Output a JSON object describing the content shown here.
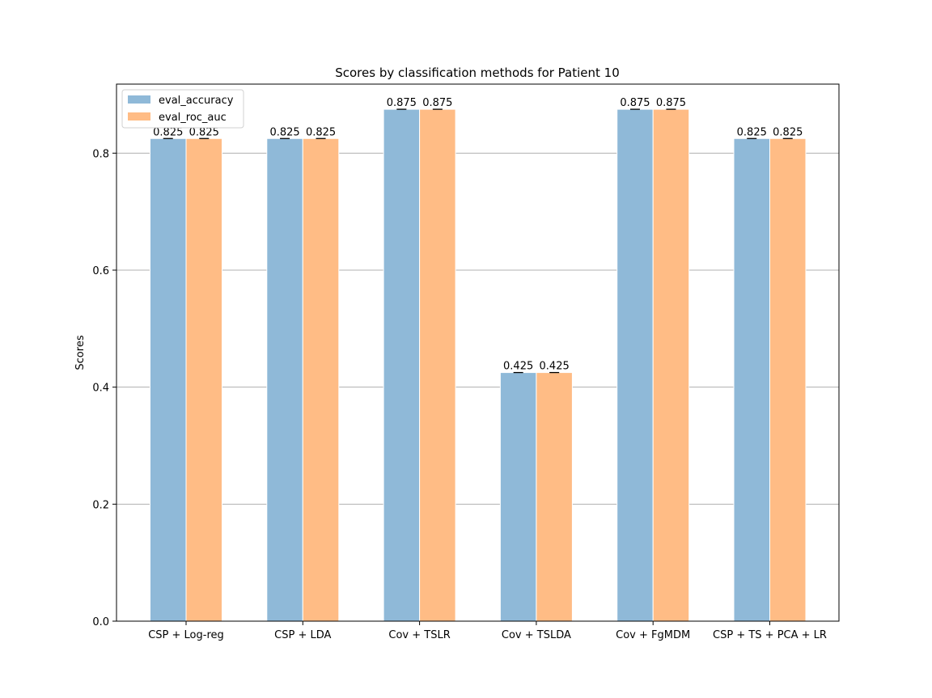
{
  "chart_data": {
    "type": "bar",
    "title": "Scores by classification methods for Patient 10",
    "xlabel": "",
    "ylabel": "Scores",
    "categories": [
      "CSP + Log-reg",
      "CSP + LDA",
      "Cov + TSLR",
      "Cov + TSLDA",
      "Cov + FgMDM",
      "CSP + TS + PCA + LR"
    ],
    "series": [
      {
        "name": "eval_accuracy",
        "values": [
          0.825,
          0.825,
          0.875,
          0.425,
          0.875,
          0.825
        ],
        "color": "#8fb9d8"
      },
      {
        "name": "eval_roc_auc",
        "values": [
          0.825,
          0.825,
          0.875,
          0.425,
          0.875,
          0.825
        ],
        "color": "#ffbc85"
      }
    ],
    "data_labels": [
      [
        "0.825",
        "0.825",
        "0.875",
        "0.425",
        "0.875",
        "0.825"
      ],
      [
        "0.825",
        "0.825",
        "0.875",
        "0.425",
        "0.875",
        "0.825"
      ]
    ],
    "ylim": [
      0,
      0.918
    ],
    "yticks": [
      "0.0",
      "0.2",
      "0.4",
      "0.6",
      "0.8"
    ],
    "ytick_values": [
      0.0,
      0.2,
      0.4,
      0.6,
      0.8
    ],
    "grid": "y",
    "legend_position": "top-left",
    "error_bars": true
  }
}
